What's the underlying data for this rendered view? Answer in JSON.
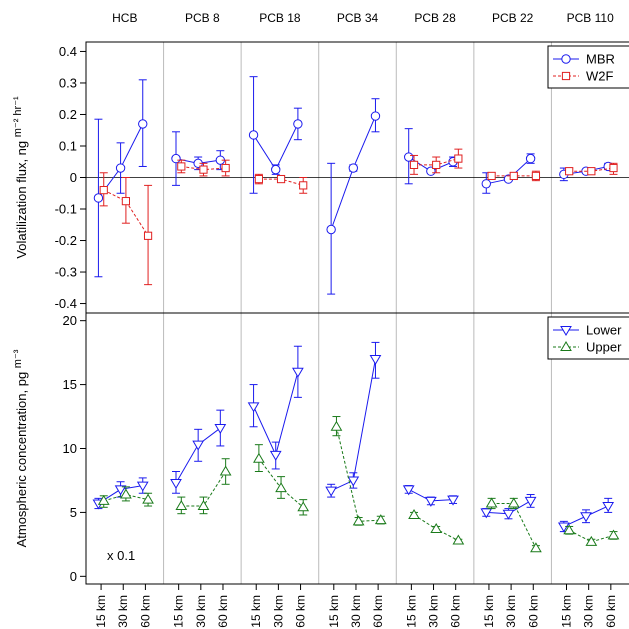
{
  "chart_data": {
    "type": "line",
    "panels": [
      "HCB",
      "PCB 8",
      "PCB 18",
      "PCB 34",
      "PCB 28",
      "PCB 22",
      "PCB 110"
    ],
    "x_tick_labels": [
      "15 km",
      "30 km",
      "60 km"
    ],
    "colors": {
      "MBR": "#1a1aee",
      "W2F": "#e02020",
      "Lower": "#1a1aee",
      "Upper": "#1a7a1a"
    },
    "top": {
      "ylabel_main": "Volatilization flux, ng",
      "ylabel_sup": "m⁻² hr⁻¹",
      "ylim": [
        -0.43,
        0.43
      ],
      "yticks": [
        "-0.4",
        "-0.3",
        "-0.2",
        "-0.1",
        "0",
        "0.1",
        "0.2",
        "0.3",
        "0.4"
      ],
      "ytick_values": [
        -0.4,
        -0.3,
        -0.2,
        -0.1,
        0,
        0.1,
        0.2,
        0.3,
        0.4
      ],
      "legend": [
        "MBR",
        "W2F"
      ],
      "series": [
        {
          "key": "MBR",
          "marker": "circle",
          "dash": false,
          "offset": -0.12,
          "values": [
            [
              [
                -0.065,
                -0.315,
                0.185
              ],
              [
                0.03,
                -0.05,
                0.11
              ],
              [
                0.17,
                0.035,
                0.31
              ]
            ],
            [
              [
                0.06,
                -0.025,
                0.145
              ],
              [
                0.045,
                0.025,
                0.065
              ],
              [
                0.055,
                0.025,
                0.085
              ]
            ],
            [
              [
                0.135,
                -0.05,
                0.32
              ],
              [
                0.025,
                0.01,
                0.04
              ],
              [
                0.17,
                0.12,
                0.22
              ]
            ],
            [
              [
                -0.165,
                -0.37,
                0.045
              ],
              [
                0.03,
                0.02,
                0.04
              ],
              [
                0.195,
                0.145,
                0.25
              ]
            ],
            [
              [
                0.065,
                -0.02,
                0.155
              ],
              [
                0.02,
                0.015,
                0.025
              ],
              [
                0.05,
                0.035,
                0.065
              ]
            ],
            [
              [
                -0.02,
                -0.05,
                0.015
              ],
              [
                -0.005,
                -0.01,
                0.0
              ],
              [
                0.06,
                0.045,
                0.075
              ]
            ],
            [
              [
                0.01,
                -0.01,
                0.03
              ],
              [
                0.02,
                0.015,
                0.025
              ],
              [
                0.035,
                0.025,
                0.045
              ]
            ]
          ]
        },
        {
          "key": "W2F",
          "marker": "square",
          "dash": true,
          "offset": 0.12,
          "values": [
            [
              [
                -0.04,
                -0.09,
                0.015
              ],
              [
                -0.075,
                -0.145,
                0.0
              ],
              [
                -0.185,
                -0.34,
                -0.025
              ]
            ],
            [
              [
                0.035,
                0.015,
                0.055
              ],
              [
                0.025,
                0.005,
                0.045
              ],
              [
                0.03,
                0.005,
                0.055
              ]
            ],
            [
              [
                -0.005,
                -0.02,
                0.01
              ],
              [
                -0.005,
                -0.015,
                0.005
              ],
              [
                -0.025,
                -0.05,
                0.0
              ]
            ],
            [
              null,
              null,
              null
            ],
            [
              [
                0.04,
                0.01,
                0.07
              ],
              [
                0.04,
                0.015,
                0.065
              ],
              [
                0.06,
                0.03,
                0.09
              ]
            ],
            [
              [
                0.005,
                -0.005,
                0.015
              ],
              [
                0.005,
                -0.005,
                0.015
              ],
              [
                0.005,
                -0.01,
                0.02
              ]
            ],
            [
              [
                0.02,
                0.01,
                0.03
              ],
              [
                0.02,
                0.01,
                0.03
              ],
              [
                0.03,
                0.01,
                0.045
              ]
            ]
          ]
        }
      ]
    },
    "bottom": {
      "ylabel_main": "Atmospheric concentration, pg",
      "ylabel_sup": "m⁻³",
      "ylim": [
        -0.6,
        20.6
      ],
      "yticks": [
        "0",
        "5",
        "10",
        "15",
        "20"
      ],
      "ytick_values": [
        0,
        5,
        10,
        15,
        20
      ],
      "legend": [
        "Lower",
        "Upper"
      ],
      "annotation": "x 0.1",
      "series": [
        {
          "key": "Lower",
          "marker": "tri-down",
          "dash": false,
          "offset": -0.12,
          "values": [
            [
              [
                5.7,
                5.3,
                6.1
              ],
              [
                6.8,
                6.2,
                7.4
              ],
              [
                7.1,
                6.5,
                7.7
              ]
            ],
            [
              [
                7.3,
                6.5,
                8.2
              ],
              [
                10.3,
                9.0,
                11.5
              ],
              [
                11.6,
                10.2,
                13.0
              ]
            ],
            [
              [
                13.3,
                11.7,
                15.0
              ],
              [
                9.5,
                8.4,
                10.5
              ],
              [
                16.0,
                14.0,
                18.0
              ]
            ],
            [
              [
                6.7,
                6.2,
                7.2
              ],
              [
                7.5,
                6.9,
                8.1
              ],
              [
                17.0,
                15.5,
                18.3
              ]
            ],
            [
              [
                6.8,
                6.5,
                7.1
              ],
              [
                5.9,
                5.6,
                6.2
              ],
              [
                6.0,
                5.7,
                6.3
              ]
            ],
            [
              [
                5.0,
                4.7,
                5.3
              ],
              [
                4.9,
                4.5,
                5.3
              ],
              [
                5.9,
                5.4,
                6.4
              ]
            ],
            [
              [
                3.9,
                3.5,
                4.3
              ],
              [
                4.7,
                4.2,
                5.2
              ],
              [
                5.5,
                5.0,
                6.1
              ]
            ]
          ]
        },
        {
          "key": "Upper",
          "marker": "tri-up",
          "dash": true,
          "offset": 0.12,
          "values": [
            [
              [
                5.9,
                5.4,
                6.3
              ],
              [
                6.4,
                5.9,
                7.0
              ],
              [
                6.0,
                5.5,
                6.5
              ]
            ],
            [
              [
                5.5,
                4.9,
                6.2
              ],
              [
                5.5,
                4.9,
                6.2
              ],
              [
                8.2,
                7.2,
                9.2
              ]
            ],
            [
              [
                9.2,
                8.2,
                10.3
              ],
              [
                6.9,
                6.1,
                7.8
              ],
              [
                5.4,
                4.8,
                6.0
              ]
            ],
            [
              [
                11.7,
                11.0,
                12.5
              ],
              [
                4.3,
                4.0,
                4.6
              ],
              [
                4.4,
                4.1,
                4.7
              ]
            ],
            [
              [
                4.8,
                4.6,
                5.0
              ],
              [
                3.7,
                3.5,
                3.9
              ],
              [
                2.8,
                2.7,
                2.9
              ]
            ],
            [
              [
                5.7,
                5.3,
                6.1
              ],
              [
                5.7,
                5.3,
                6.1
              ],
              [
                2.2,
                2.0,
                2.4
              ]
            ],
            [
              [
                3.6,
                3.3,
                3.9
              ],
              [
                2.7,
                2.5,
                2.9
              ],
              [
                3.2,
                2.9,
                3.5
              ]
            ]
          ]
        }
      ]
    }
  }
}
